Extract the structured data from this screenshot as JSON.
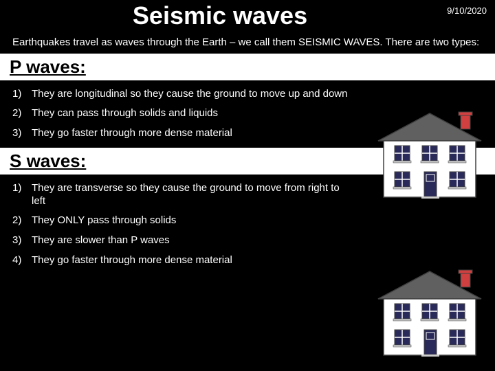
{
  "title": "Seismic waves",
  "date": "9/10/2020",
  "intro": "Earthquakes travel as waves through the Earth – we call them SEISMIC WAVES.  There are two types:",
  "p_heading": "P waves:",
  "p_items": [
    {
      "num": "1)",
      "text": "They are longitudinal so they cause the ground to move up and down"
    },
    {
      "num": "2)",
      "text": "They can pass through solids and liquids"
    },
    {
      "num": "3)",
      "text": "They go faster through more dense material"
    }
  ],
  "s_heading": "S waves:",
  "s_items": [
    {
      "num": "1)",
      "text": "They are transverse so they cause the ground to move from right to left"
    },
    {
      "num": "2)",
      "text": "They ONLY pass through solids"
    },
    {
      "num": "3)",
      "text": "They are slower than P waves"
    },
    {
      "num": "4)",
      "text": "They go faster through more dense material"
    }
  ],
  "house": {
    "wall_color": "#ffffff",
    "roof_color": "#606060",
    "window_color": "#2a2a5a",
    "frame_color": "#ffffff",
    "door_color": "#2a2a5a",
    "chimney_color": "#d04040",
    "outline_color": "#404040"
  }
}
